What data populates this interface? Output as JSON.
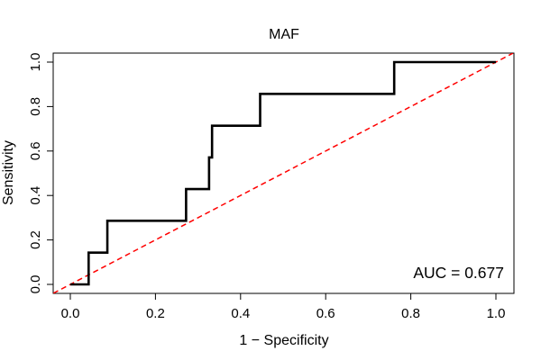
{
  "chart_data": {
    "type": "line",
    "title": "MAF",
    "xlabel": "1 − Specificity",
    "ylabel": "Sensitivity",
    "xlim": [
      0,
      1
    ],
    "ylim": [
      0,
      1
    ],
    "x_ticks": [
      0.0,
      0.2,
      0.4,
      0.6,
      0.8,
      1.0
    ],
    "x_tick_labels": [
      "0.0",
      "0.2",
      "0.4",
      "0.6",
      "0.8",
      "1.0"
    ],
    "y_ticks": [
      0.0,
      0.2,
      0.4,
      0.6,
      0.8,
      1.0
    ],
    "y_tick_labels": [
      "0.0",
      "0.2",
      "0.4",
      "0.6",
      "0.8",
      "1.0"
    ],
    "grid": false,
    "series": [
      {
        "role": "roc-curve",
        "color": "#000000",
        "line_style": "solid",
        "x": [
          0.0,
          0.043,
          0.043,
          0.087,
          0.087,
          0.272,
          0.272,
          0.326,
          0.326,
          0.333,
          0.333,
          0.446,
          0.446,
          0.761,
          0.761,
          1.0
        ],
        "y": [
          0.0,
          0.0,
          0.143,
          0.143,
          0.286,
          0.286,
          0.429,
          0.429,
          0.571,
          0.571,
          0.714,
          0.714,
          0.857,
          0.857,
          1.0,
          1.0
        ]
      },
      {
        "role": "reference-diagonal",
        "color": "#ff0000",
        "line_style": "dashed",
        "x": [
          -0.04,
          1.04
        ],
        "y": [
          -0.04,
          1.04
        ]
      }
    ],
    "annotation": "AUC = 0.677"
  }
}
